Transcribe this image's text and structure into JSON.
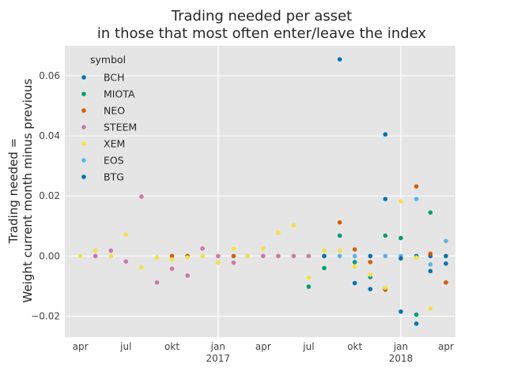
{
  "colors": {
    "background": "#ffffff",
    "plot_background": "#e5e5e5",
    "grid": "#ffffff"
  },
  "chart_data": {
    "type": "scatter",
    "title": "Trading needed per asset\nin those that most often enter/leave the index",
    "xlabel": "",
    "ylabel": "Trading needed =\nWeight current month minus previous",
    "xlim": [
      "2016-03-01",
      "2018-04-20"
    ],
    "ylim": [
      -0.027,
      0.07
    ],
    "grid": true,
    "legend": {
      "title": "symbol",
      "position": "top-left"
    },
    "x_ticks": [
      {
        "date": "2016-04-01",
        "label": "apr",
        "sub": ""
      },
      {
        "date": "2016-07-01",
        "label": "jul",
        "sub": ""
      },
      {
        "date": "2016-10-01",
        "label": "okt",
        "sub": ""
      },
      {
        "date": "2017-01-01",
        "label": "jan",
        "sub": "2017"
      },
      {
        "date": "2017-04-01",
        "label": "apr",
        "sub": ""
      },
      {
        "date": "2017-07-01",
        "label": "jul",
        "sub": ""
      },
      {
        "date": "2017-10-01",
        "label": "okt",
        "sub": ""
      },
      {
        "date": "2018-01-01",
        "label": "jan",
        "sub": "2018"
      },
      {
        "date": "2018-04-01",
        "label": "apr",
        "sub": ""
      }
    ],
    "y_ticks": [
      {
        "value": 0.06,
        "label": "0.06"
      },
      {
        "value": 0.04,
        "label": "0.04"
      },
      {
        "value": 0.02,
        "label": "0.02"
      },
      {
        "value": 0.0,
        "label": "0.00"
      },
      {
        "value": -0.02,
        "label": "−0.02"
      }
    ],
    "series": [
      {
        "name": "BCH",
        "color": "#0072b2",
        "points": [
          [
            "2017-09-01",
            0.0655
          ],
          [
            "2017-10-01",
            -0.009
          ],
          [
            "2017-11-01",
            -0.011
          ],
          [
            "2017-11-01",
            0.0
          ],
          [
            "2017-12-01",
            0.0405
          ],
          [
            "2017-12-01",
            0.019
          ],
          [
            "2017-12-01",
            -0.011
          ],
          [
            "2018-01-01",
            -0.0185
          ],
          [
            "2018-02-01",
            -0.0225
          ],
          [
            "2018-02-01",
            0.0
          ],
          [
            "2018-03-01",
            -0.005
          ],
          [
            "2018-03-01",
            0.0
          ],
          [
            "2018-04-01",
            0.0
          ],
          [
            "2018-04-01",
            -0.0025
          ]
        ]
      },
      {
        "name": "MIOTA",
        "color": "#009e73",
        "points": [
          [
            "2017-07-01",
            -0.0102
          ],
          [
            "2017-08-01",
            -0.004
          ],
          [
            "2017-09-01",
            0.0068
          ],
          [
            "2017-10-01",
            -0.002
          ],
          [
            "2017-11-01",
            -0.007
          ],
          [
            "2017-12-01",
            0.0068
          ],
          [
            "2018-01-01",
            0.006
          ],
          [
            "2018-02-01",
            -0.0195
          ],
          [
            "2018-03-01",
            0.0145
          ]
        ]
      },
      {
        "name": "NEO",
        "color": "#d55e00",
        "points": [
          [
            "2016-10-01",
            0.0
          ],
          [
            "2016-11-01",
            0.0
          ],
          [
            "2017-02-01",
            0.0
          ],
          [
            "2017-09-01",
            0.0112
          ],
          [
            "2017-10-01",
            0.0022
          ],
          [
            "2017-11-01",
            -0.002
          ],
          [
            "2017-12-01",
            -0.0112
          ],
          [
            "2018-02-01",
            0.0232
          ],
          [
            "2018-03-01",
            0.0008
          ],
          [
            "2018-04-01",
            -0.0088
          ]
        ]
      },
      {
        "name": "STEEM",
        "color": "#cc79a7",
        "points": [
          [
            "2016-05-01",
            0.0
          ],
          [
            "2016-06-01",
            0.0018
          ],
          [
            "2016-07-01",
            -0.0018
          ],
          [
            "2016-08-01",
            0.0198
          ],
          [
            "2016-09-01",
            -0.0088
          ],
          [
            "2016-10-01",
            -0.0042
          ],
          [
            "2016-11-01",
            -0.0065
          ],
          [
            "2016-12-01",
            0.0025
          ],
          [
            "2017-01-01",
            0.0
          ],
          [
            "2017-02-01",
            -0.0022
          ],
          [
            "2017-03-01",
            0.0
          ],
          [
            "2017-04-01",
            0.0
          ],
          [
            "2017-05-01",
            0.0
          ],
          [
            "2017-06-01",
            0.0
          ],
          [
            "2017-07-01",
            0.0
          ],
          [
            "2017-08-01",
            0.0
          ]
        ]
      },
      {
        "name": "XEM",
        "color": "#f0e442",
        "points": [
          [
            "2016-04-01",
            0.0
          ],
          [
            "2016-05-01",
            0.0018
          ],
          [
            "2016-06-01",
            0.0
          ],
          [
            "2016-07-01",
            0.0072
          ],
          [
            "2016-08-01",
            -0.0038
          ],
          [
            "2016-09-01",
            -0.0005
          ],
          [
            "2016-10-01",
            -0.0012
          ],
          [
            "2016-11-01",
            -0.0005
          ],
          [
            "2016-12-01",
            0.0
          ],
          [
            "2017-01-01",
            -0.0022
          ],
          [
            "2017-02-01",
            0.0025
          ],
          [
            "2017-03-01",
            0.0
          ],
          [
            "2017-04-01",
            0.0025
          ],
          [
            "2017-05-01",
            0.0078
          ],
          [
            "2017-06-01",
            0.0102
          ],
          [
            "2017-07-01",
            -0.0072
          ],
          [
            "2017-08-01",
            0.0018
          ],
          [
            "2017-09-01",
            0.0018
          ],
          [
            "2017-10-01",
            -0.0035
          ],
          [
            "2017-11-01",
            -0.0062
          ],
          [
            "2017-12-01",
            -0.0105
          ],
          [
            "2018-01-01",
            0.0182
          ],
          [
            "2018-02-01",
            -0.0005
          ],
          [
            "2018-03-01",
            -0.0175
          ]
        ]
      },
      {
        "name": "EOS",
        "color": "#56b4e9",
        "points": [
          [
            "2017-09-01",
            0.0
          ],
          [
            "2017-10-01",
            0.0
          ],
          [
            "2017-12-01",
            0.0
          ],
          [
            "2018-01-01",
            0.0
          ],
          [
            "2018-02-01",
            0.019
          ],
          [
            "2018-03-01",
            -0.0028
          ],
          [
            "2018-04-01",
            0.005
          ]
        ]
      },
      {
        "name": "BTG",
        "color": "#0072b2",
        "points": [
          [
            "2017-08-01",
            0.0
          ],
          [
            "2018-01-01",
            -0.0008
          ]
        ]
      }
    ]
  }
}
